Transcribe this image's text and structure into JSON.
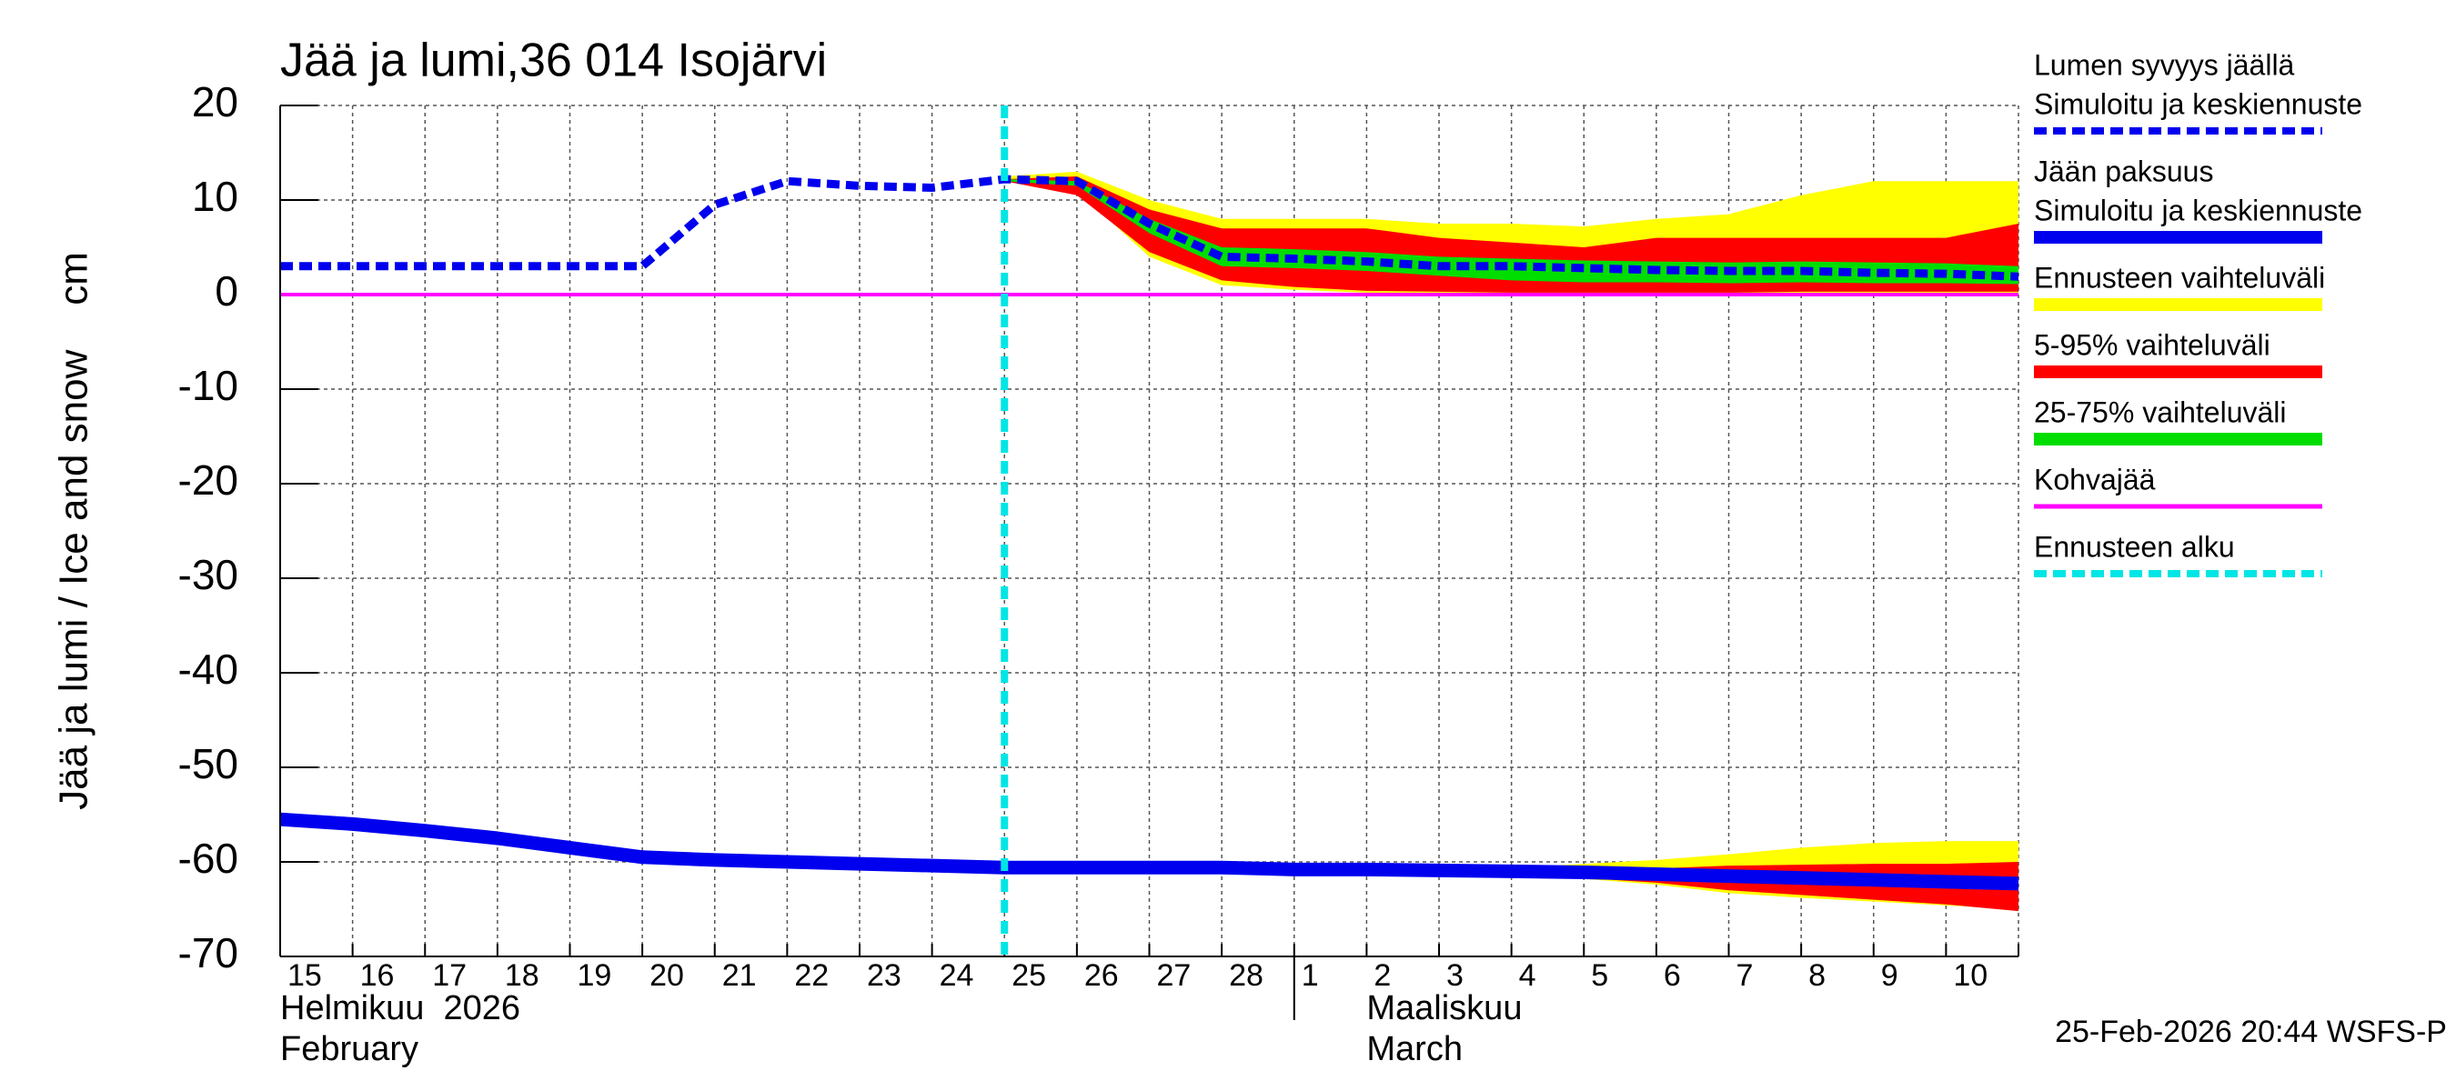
{
  "chart_data": {
    "type": "forecast",
    "title": "Jää ja lumi,36 014 Isojärvi",
    "ylabel": "Jää ja lumi / Ice and snow    cm",
    "footer": "25-Feb-2026 20:44 WSFS-P",
    "categories": [
      "15",
      "16",
      "17",
      "18",
      "19",
      "20",
      "21",
      "22",
      "23",
      "24",
      "25",
      "26",
      "27",
      "28",
      "1",
      "2",
      "3",
      "4",
      "5",
      "6",
      "7",
      "8",
      "9",
      "10",
      null
    ],
    "months": [
      {
        "label": "Helmikuu  2026",
        "label2": "February"
      },
      {
        "label": "Maaliskuu",
        "label2": "March"
      }
    ],
    "ylim": [
      -70,
      20
    ],
    "yticks": [
      -70,
      -60,
      -50,
      -40,
      -30,
      -20,
      -10,
      0,
      10,
      20
    ],
    "grid": true,
    "series": [
      {
        "name": "Lumen syvyys jäällä",
        "label": "Simuloitu ja keskiennuste",
        "kind": "line",
        "dash": true,
        "color": "#0000ee",
        "values": [
          3,
          3,
          3,
          3,
          3,
          3,
          9.5,
          12,
          11.5,
          11.3,
          12.2,
          12,
          7.5,
          4,
          3.8,
          3.5,
          3,
          3,
          2.8,
          2.6,
          2.5,
          2.5,
          2.3,
          2.2,
          1.9
        ]
      },
      {
        "name": "Jään paksuus",
        "label": "Simuloitu ja keskiennuste",
        "kind": "line",
        "dash": false,
        "color": "#0000ee",
        "values": [
          -55.5,
          -56,
          -56.7,
          -57.5,
          -58.5,
          -59.5,
          -59.8,
          -60,
          -60.2,
          -60.4,
          -60.6,
          -60.6,
          -60.6,
          -60.6,
          -60.8,
          -60.8,
          -60.9,
          -61,
          -61.1,
          -61.3,
          -61.5,
          -61.7,
          -61.9,
          -62.1,
          -62.3
        ]
      },
      {
        "name": "Ennusteen vaihteluväli",
        "kind": "band",
        "color": "#ffff00",
        "snow": {
          "upper": [
            null,
            null,
            null,
            null,
            null,
            null,
            null,
            null,
            null,
            null,
            12.5,
            13,
            10,
            8,
            8,
            8,
            7.5,
            7.5,
            7.2,
            8,
            8.5,
            10.5,
            12,
            12,
            12
          ],
          "lower": [
            null,
            null,
            null,
            null,
            null,
            null,
            null,
            null,
            null,
            null,
            12,
            11,
            4,
            1,
            0.5,
            0.2,
            0,
            0,
            0,
            0,
            0,
            0,
            0,
            0,
            0
          ]
        },
        "ice": {
          "upper": [
            null,
            null,
            null,
            null,
            null,
            null,
            null,
            null,
            null,
            null,
            -60.6,
            -60.6,
            -60.6,
            -60.6,
            -60.6,
            -60.7,
            -60.7,
            -60.6,
            -60.2,
            -59.8,
            -59.2,
            -58.5,
            -58,
            -57.8,
            -57.8
          ],
          "lower": [
            null,
            null,
            null,
            null,
            null,
            null,
            null,
            null,
            null,
            null,
            -60.6,
            -60.6,
            -60.6,
            -60.6,
            -60.8,
            -60.9,
            -61.1,
            -61.4,
            -61.8,
            -62.4,
            -63.3,
            -63.8,
            -64.2,
            -64.6,
            -65
          ]
        }
      },
      {
        "name": "5-95% vaihteluväli",
        "kind": "band",
        "color": "#ff0000",
        "snow": {
          "upper": [
            null,
            null,
            null,
            null,
            null,
            null,
            null,
            null,
            null,
            null,
            12.2,
            12.5,
            9,
            7,
            7,
            7,
            6,
            5.5,
            5,
            6,
            6,
            6,
            6,
            6,
            7.5
          ],
          "lower": [
            null,
            null,
            null,
            null,
            null,
            null,
            null,
            null,
            null,
            null,
            12,
            10.5,
            4.5,
            1.5,
            0.8,
            0.4,
            0.3,
            0.2,
            0.2,
            0.2,
            0.2,
            0.3,
            0.3,
            0.3,
            0.3
          ]
        },
        "ice": {
          "upper": [
            null,
            null,
            null,
            null,
            null,
            null,
            null,
            null,
            null,
            null,
            -60.6,
            -60.6,
            -60.6,
            -60.6,
            -60.7,
            -60.8,
            -60.9,
            -60.9,
            -60.8,
            -60.7,
            -60.4,
            -60.3,
            -60.2,
            -60.2,
            -60
          ],
          "lower": [
            null,
            null,
            null,
            null,
            null,
            null,
            null,
            null,
            null,
            null,
            -60.6,
            -60.6,
            -60.6,
            -60.6,
            -60.8,
            -60.9,
            -61.1,
            -61.4,
            -61.7,
            -62.2,
            -63,
            -63.5,
            -64,
            -64.5,
            -65.2
          ]
        }
      },
      {
        "name": "25-75% vaihteluväli",
        "kind": "band",
        "color": "#00dd00",
        "snow": {
          "upper": [
            null,
            null,
            null,
            null,
            null,
            null,
            null,
            null,
            null,
            null,
            12.2,
            12,
            8,
            5,
            4.8,
            4.5,
            4,
            3.8,
            3.6,
            3.5,
            3.4,
            3.5,
            3.4,
            3.3,
            3
          ],
          "lower": [
            null,
            null,
            null,
            null,
            null,
            null,
            null,
            null,
            null,
            null,
            12,
            11.5,
            6.5,
            3,
            2.8,
            2.5,
            2,
            1.5,
            1.3,
            1.3,
            1.2,
            1.3,
            1.2,
            1.2,
            1.1
          ]
        },
        "ice": {
          "upper": [
            null,
            null,
            null,
            null,
            null,
            null,
            null,
            null,
            null,
            null,
            -60.6,
            -60.6,
            -60.6,
            -60.6,
            -60.7,
            -60.7,
            -60.8,
            -60.9,
            -61,
            -61.1,
            -61.3,
            -61.5,
            -61.7,
            -61.9,
            -62.1
          ],
          "lower": [
            null,
            null,
            null,
            null,
            null,
            null,
            null,
            null,
            null,
            null,
            -60.6,
            -60.6,
            -60.6,
            -60.6,
            -60.8,
            -60.9,
            -61,
            -61.1,
            -61.2,
            -61.4,
            -61.6,
            -61.8,
            -62,
            -62.2,
            -62.4
          ]
        }
      },
      {
        "name": "Kohvajää",
        "kind": "line",
        "dash": false,
        "color": "#ff00ff",
        "values": [
          0,
          0,
          0,
          0,
          0,
          0,
          0,
          0,
          0,
          0,
          0,
          0,
          0,
          0,
          0,
          0,
          0,
          0,
          0,
          0,
          0,
          0,
          0,
          0,
          0
        ]
      },
      {
        "name": "Ennusteen alku",
        "kind": "vline",
        "dash": true,
        "color": "#00e5e5",
        "index": 10
      }
    ]
  }
}
